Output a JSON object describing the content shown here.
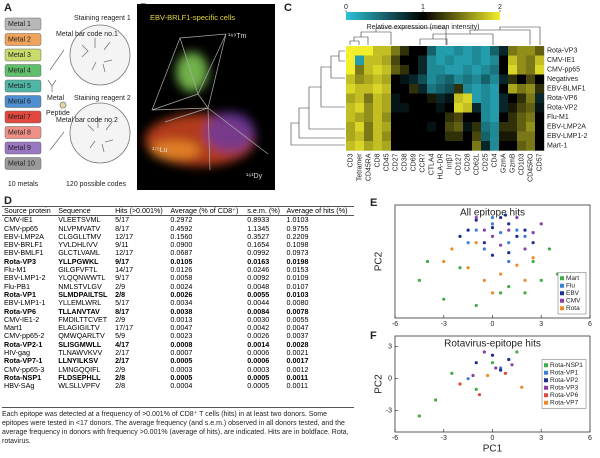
{
  "panel_labels": [
    "A",
    "B",
    "C",
    "D",
    "E",
    "F"
  ],
  "panel_a": {
    "metals": [
      {
        "label": "Metal 1",
        "color": "#b8b8b8"
      },
      {
        "label": "Metal 2",
        "color": "#f0a35a"
      },
      {
        "label": "Metal 3",
        "color": "#c9dc6b"
      },
      {
        "label": "Metal 4",
        "color": "#5fbf6a"
      },
      {
        "label": "Metal 5",
        "color": "#4fb6a6"
      },
      {
        "label": "Metal 6",
        "color": "#4d8fd0"
      },
      {
        "label": "Metal 7",
        "color": "#e2483e"
      },
      {
        "label": "Metal 8",
        "color": "#ee8f86"
      },
      {
        "label": "Metal 9",
        "color": "#9a77c2"
      },
      {
        "label": "Metal 10",
        "color": "#9a9a9a"
      }
    ],
    "metals_caption": "10 metals",
    "barcode1": "Metal bar code no.1",
    "reagent1": "Staining reagent 1",
    "metal": "Metal",
    "peptide": "Peptide",
    "barcode2": "Metal bar code no.2",
    "reagent2": "Staining reagent 2",
    "codes_caption": "120 possible codes"
  },
  "panel_b": {
    "title": "EBV-BRLF1-specific cells",
    "axis1": "¹⁶⁹Tm",
    "axis2": "¹⁷⁵Lu",
    "axis3": "¹⁶¹Dy"
  },
  "panel_c": {
    "colorbar_label": "Relative expression (mean intensity)",
    "colorbar_ticks": [
      0,
      1,
      2
    ],
    "clim": [
      0,
      2
    ],
    "colormap": [
      "#2cc3d6",
      "#000000",
      "#f2ee2c"
    ],
    "rows": [
      "Rota-VP3",
      "CMV-IE1",
      "CMV-pp65",
      "Negatives",
      "EBV-BLMF1",
      "Rota-VP6",
      "Rota-VP2",
      "Flu-M1",
      "EBV-LMP2A",
      "EBV-LMP1-2",
      "Mart-1"
    ],
    "columns": [
      "CD3",
      "Tetramer",
      "CD45RA",
      "CD8",
      "CD45",
      "CD27",
      "CD38",
      "CD69",
      "CCR7",
      "CTLA4",
      "HLA-DR",
      "Intβ7",
      "CD127",
      "CD28",
      "CD62L",
      "CD25",
      "CD4",
      "GzmA",
      "GzmB",
      "CD103",
      "CD45RO",
      "CD57"
    ],
    "values": [
      [
        2,
        2,
        2,
        1.8,
        1.8,
        1.5,
        1.2,
        1,
        1,
        0.5,
        0.2,
        0.2,
        0.3,
        0.2,
        0.3,
        0.2,
        0.5,
        0.8,
        1.5,
        1.6,
        1.6,
        1.4
      ],
      [
        2,
        0.2,
        1.8,
        1.8,
        1.7,
        1.3,
        1,
        1,
        0.8,
        0.3,
        0.2,
        0.3,
        0.2,
        0.2,
        0.3,
        0.2,
        0.3,
        1,
        1.8,
        1.6,
        1.5,
        1.8
      ],
      [
        2,
        1.5,
        1.8,
        1.9,
        1.8,
        1.4,
        1.2,
        1,
        0.8,
        0.3,
        0.3,
        0.2,
        0.2,
        0.3,
        0.2,
        0.3,
        0.4,
        1,
        1.9,
        1.6,
        1.5,
        1.9
      ],
      [
        1.8,
        1.6,
        1.7,
        1.8,
        1.7,
        1,
        0.9,
        0.8,
        0.6,
        0.3,
        0.4,
        0.5,
        0.3,
        0.4,
        0.3,
        0.5,
        0.3,
        0.8,
        1.2,
        1,
        1.3,
        1
      ],
      [
        1.9,
        1.8,
        1.8,
        1.9,
        1.8,
        1,
        1,
        1.2,
        0.8,
        0.4,
        0.5,
        0.6,
        1.2,
        0.3,
        0.2,
        0.3,
        0.2,
        1,
        1.7,
        1.5,
        1.6,
        1.2
      ],
      [
        1.7,
        1.8,
        1.5,
        1.8,
        1.7,
        0.9,
        1,
        1,
        1,
        1.1,
        0.8,
        0.9,
        1.8,
        1.9,
        0.2,
        0.3,
        0.2,
        0.8,
        1,
        1.2,
        1.5,
        0.8
      ],
      [
        1.8,
        1.9,
        1.6,
        1.8,
        1.7,
        0.9,
        0.9,
        1,
        1,
        1,
        0.9,
        1,
        1.9,
        1.8,
        0.8,
        0.3,
        0.2,
        0.8,
        1.1,
        1.3,
        1.4,
        0.9
      ],
      [
        1.8,
        1.7,
        1.6,
        1.8,
        1.6,
        1,
        1,
        1,
        1,
        1,
        1,
        1.2,
        1.3,
        1,
        1,
        0.3,
        0.2,
        1,
        1.2,
        1.4,
        1.5,
        1
      ],
      [
        1.7,
        1.9,
        1.5,
        1.8,
        1.7,
        1,
        1,
        1,
        1,
        0.9,
        1,
        1.3,
        1.4,
        0.9,
        1.2,
        0.4,
        0.3,
        1.2,
        1.2,
        1.4,
        1.6,
        1
      ],
      [
        1.7,
        1.8,
        1.5,
        1.8,
        1.6,
        1,
        1,
        1,
        1,
        1,
        1,
        1.2,
        1.2,
        1,
        1.3,
        0.5,
        0.3,
        1.1,
        1.1,
        1.5,
        1.5,
        1
      ],
      [
        1.8,
        1.9,
        1.7,
        1.8,
        1.7,
        1,
        1,
        1,
        1,
        1,
        1,
        1,
        1,
        1,
        1.5,
        0.8,
        0.3,
        1,
        1,
        1.4,
        1.5,
        1
      ]
    ]
  },
  "table": {
    "header": [
      "Source protein",
      "Sequence",
      "Hits (>0.001%)",
      "Average (% of CD8⁺)",
      "s.e.m. (%)",
      "Average of hits (%)"
    ],
    "rows": [
      {
        "cells": [
          "CMV-IE1",
          "VLEETSVML",
          "5/17",
          "0.2972",
          "0.8933",
          "1.0103"
        ],
        "bold": false
      },
      {
        "cells": [
          "CMV-pp65",
          "NLVPMVATV",
          "8/17",
          "0.4592",
          "1.1345",
          "0.9755"
        ],
        "bold": false
      },
      {
        "cells": [
          "EBV-LMP2A",
          "CLGGLLTMV",
          "12/17",
          "0.1560",
          "0.3527",
          "0.2209"
        ],
        "bold": false
      },
      {
        "cells": [
          "EBV-BRLF1",
          "YVLDHLIVV",
          "9/11",
          "0.0900",
          "0.1654",
          "0.1098"
        ],
        "bold": false
      },
      {
        "cells": [
          "EBV-BMLF1",
          "GLCTLVAML",
          "12/17",
          "0.0687",
          "0.0992",
          "0.0973"
        ],
        "bold": false
      },
      {
        "cells": [
          "Rota-VP3",
          "YLLPGWKL",
          "9/17",
          "0.0105",
          "0.0163",
          "0.0198"
        ],
        "bold": true
      },
      {
        "cells": [
          "Flu-M1",
          "GILGFVFTL",
          "14/17",
          "0.0126",
          "0.0246",
          "0.0153"
        ],
        "bold": false
      },
      {
        "cells": [
          "EBV-LMP1-2",
          "YLQQNWWTL",
          "9/17",
          "0.0058",
          "0.0092",
          "0.0109"
        ],
        "bold": false
      },
      {
        "cells": [
          "Flu-PB1",
          "NMLSTVLGV",
          "2/9",
          "0.0024",
          "0.0048",
          "0.0107"
        ],
        "bold": false
      },
      {
        "cells": [
          "Rota-VP1",
          "SLMDPAILTSL",
          "2/8",
          "0.0026",
          "0.0055",
          "0.0103"
        ],
        "bold": true
      },
      {
        "cells": [
          "EBV-LMP1-1",
          "YLLEMLWRL",
          "5/17",
          "0.0034",
          "0.0044",
          "0.0080"
        ],
        "bold": false
      },
      {
        "cells": [
          "Rota-VP6",
          "TLLANVTAV",
          "8/17",
          "0.0038",
          "0.0084",
          "0.0078"
        ],
        "bold": true
      },
      {
        "cells": [
          "CMV-IE1-2",
          "FMDILTTCVET",
          "2/9",
          "0.0013",
          "0.0030",
          "0.0055"
        ],
        "bold": false
      },
      {
        "cells": [
          "Mart1",
          "ELAGIGILTV",
          "17/17",
          "0.0047",
          "0.0042",
          "0.0047"
        ],
        "bold": false
      },
      {
        "cells": [
          "CMV-pp65-2",
          "QMWQARLTV",
          "5/9",
          "0.0023",
          "0.0026",
          "0.0037"
        ],
        "bold": false
      },
      {
        "cells": [
          "Rota-VP2-1",
          "SLISGMWLL",
          "4/17",
          "0.0008",
          "0.0014",
          "0.0028"
        ],
        "bold": true
      },
      {
        "cells": [
          "HIV-gag",
          "TLNAWVKVV",
          "2/17",
          "0.0007",
          "0.0006",
          "0.0021"
        ],
        "bold": false
      },
      {
        "cells": [
          "Rota-VP7-1",
          "LLNYILKSV",
          "2/17",
          "0.0005",
          "0.0006",
          "0.0017"
        ],
        "bold": true
      },
      {
        "cells": [
          "CMV-pp65-3",
          "LMNGQQIFL",
          "2/9",
          "0.0003",
          "0.0003",
          "0.0012"
        ],
        "bold": false
      },
      {
        "cells": [
          "Rota-NSP1",
          "FLDSEPHLL",
          "2/8",
          "0.0005",
          "0.0005",
          "0.0011"
        ],
        "bold": true
      },
      {
        "cells": [
          "HBV-SAg",
          "WLSLLVPFV",
          "2/8",
          "0.0004",
          "0.0005",
          "0.0011"
        ],
        "bold": false
      }
    ],
    "caption": "Each epitope was detected at a frequency of >0.001% of CD8⁺ T cells (hits) in at least two donors. Some epitopes were tested in <17 donors. The average frequency (and s.e.m.) observed in all donors tested, and the average frequency in donors with frequency >0.001% (average of hits), are indicated. Hits are in boldface. Rota, rotavirus."
  },
  "chart_data": [
    {
      "type": "scatter",
      "title": "All epitope hits",
      "ylabel": "PC2",
      "xlim": [
        -6,
        6
      ],
      "ylim": [
        -5,
        4
      ],
      "xticks": [
        -6,
        -3,
        0,
        3,
        6
      ],
      "legend": "lower right",
      "series": [
        {
          "name": "Mart",
          "color": "#3fae49",
          "x": [
            -4.5,
            -3,
            -2,
            1,
            2.5,
            3,
            4,
            -1,
            0.5,
            3.5,
            -4,
            2
          ],
          "values": [
            -2,
            -3.5,
            -1,
            -2.5,
            -0.5,
            -2,
            -1.5,
            -4,
            -3,
            0.5,
            -0.5,
            -3
          ]
        },
        {
          "name": "Flu",
          "color": "#3b7fd4",
          "x": [
            -1,
            0,
            0.5,
            1,
            -0.5,
            1.5,
            2,
            0,
            -1.5,
            1
          ],
          "values": [
            2,
            2.5,
            1.8,
            1,
            0.5,
            2,
            1.5,
            3,
            1,
            -0.5
          ]
        },
        {
          "name": "EBV",
          "color": "#1c2f8c",
          "x": [
            -2,
            -1,
            0,
            0.5,
            1,
            1.5,
            2,
            -0.5,
            0,
            1,
            2.5,
            -1.5,
            0.8
          ],
          "values": [
            1.5,
            2.8,
            2.2,
            3,
            2.5,
            1.5,
            2,
            1,
            0,
            0.2,
            1,
            2,
            3.2
          ]
        },
        {
          "name": "CMV",
          "color": "#8a3fa8",
          "x": [
            -1,
            0,
            1,
            1.5,
            2.5,
            -0.5,
            0.5,
            2,
            3
          ],
          "values": [
            3,
            1.5,
            2,
            3,
            1.8,
            2,
            0.8,
            0.5,
            2.5
          ]
        },
        {
          "name": "Rota",
          "color": "#ef8a2a",
          "x": [
            -2.5,
            -1.5,
            -0.5,
            0.5,
            1.5,
            2.5,
            -3,
            0,
            2,
            -1
          ],
          "values": [
            0.5,
            -1,
            -2,
            -1.5,
            -0.8,
            -0.2,
            -0.5,
            -3,
            -2,
            1
          ]
        }
      ]
    },
    {
      "type": "scatter",
      "title": "Rotavirus-epitope hits",
      "xlabel": "PC1",
      "ylabel": "PC2",
      "xlim": [
        -6,
        6
      ],
      "ylim": [
        -5,
        4
      ],
      "xticks": [
        -6,
        -3,
        0,
        3,
        6
      ],
      "yticks": [
        -3,
        0,
        3
      ],
      "legend": "right",
      "series": [
        {
          "name": "Rota-NSP1",
          "color": "#3fae49",
          "x": [
            -4.5,
            -3.5,
            -1,
            0,
            1.5,
            -2.5
          ],
          "values": [
            -3.5,
            -2,
            -1,
            1.5,
            2.5,
            0.5
          ]
        },
        {
          "name": "Rota-VP1",
          "color": "#3b7fd4",
          "x": [
            -1.5,
            0.5
          ],
          "values": [
            0,
            1
          ]
        },
        {
          "name": "Rota-VP2",
          "color": "#1c2f8c",
          "x": [
            -1,
            0,
            0.5,
            1
          ],
          "values": [
            1.5,
            2.2,
            0.8,
            1.8
          ]
        },
        {
          "name": "Rota-VP3",
          "color": "#8a3fa8",
          "x": [
            -0.5,
            0.2,
            1.2,
            -1.2
          ],
          "values": [
            2.5,
            1,
            1.3,
            0.3
          ]
        },
        {
          "name": "Rota-VP6",
          "color": "#e2483e",
          "x": [
            -2,
            -0.8,
            0.8
          ],
          "values": [
            -0.5,
            -1.5,
            0.5
          ]
        },
        {
          "name": "Rota-VP7",
          "color": "#ef8a2a",
          "x": [
            -0.3,
            1.8
          ],
          "values": [
            0.3,
            -0.8
          ]
        }
      ]
    }
  ]
}
